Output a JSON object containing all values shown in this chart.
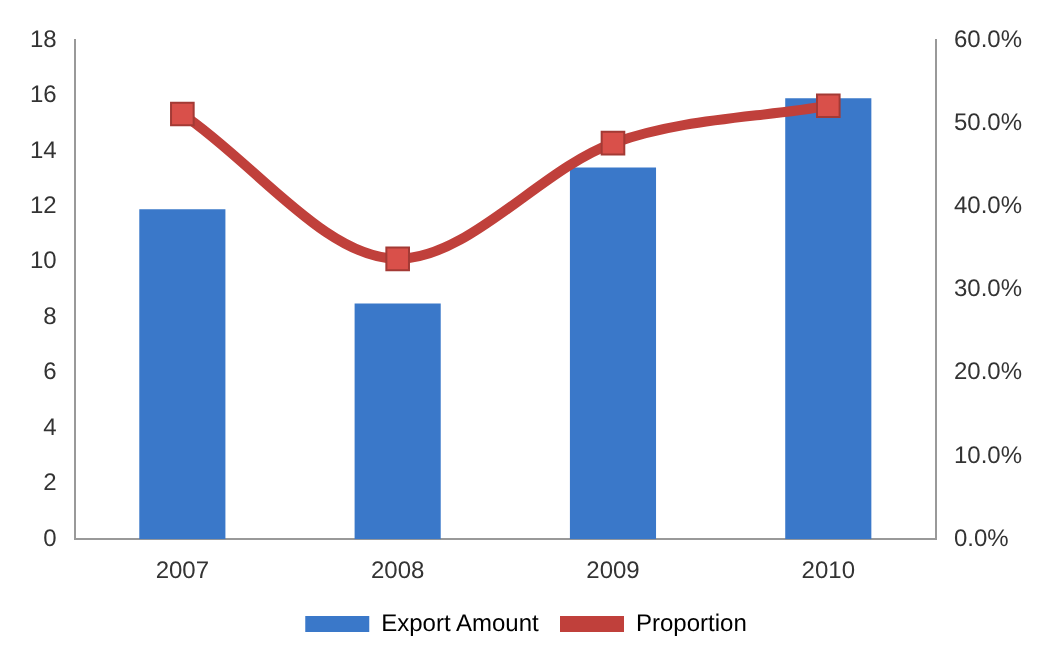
{
  "chart_data": {
    "type": "bar",
    "categories": [
      "2007",
      "2008",
      "2009",
      "2010"
    ],
    "series": [
      {
        "name": "Export Amount",
        "color": "#3a78c9",
        "values": [
          11.9,
          8.5,
          13.4,
          15.9
        ]
      },
      {
        "name": "Proportion",
        "type": "line",
        "axis": "y2",
        "color": "#c0403b",
        "marker": "square",
        "values": [
          51.1,
          33.7,
          47.6,
          52.1
        ]
      }
    ],
    "ylim": [
      0,
      18
    ],
    "yticks": [
      0,
      2,
      4,
      6,
      8,
      10,
      12,
      14,
      16,
      18
    ],
    "y2lim": [
      0,
      60
    ],
    "y2ticks": [
      {
        "value": 0,
        "label": "0.0%"
      },
      {
        "value": 10,
        "label": "10.0%"
      },
      {
        "value": 20,
        "label": "20.0%"
      },
      {
        "value": 30,
        "label": "30.0%"
      },
      {
        "value": 40,
        "label": "40.0%"
      },
      {
        "value": 50,
        "label": "50.0%"
      },
      {
        "value": 60,
        "label": "60.0%"
      }
    ],
    "grid": false,
    "legend": "bottom"
  }
}
